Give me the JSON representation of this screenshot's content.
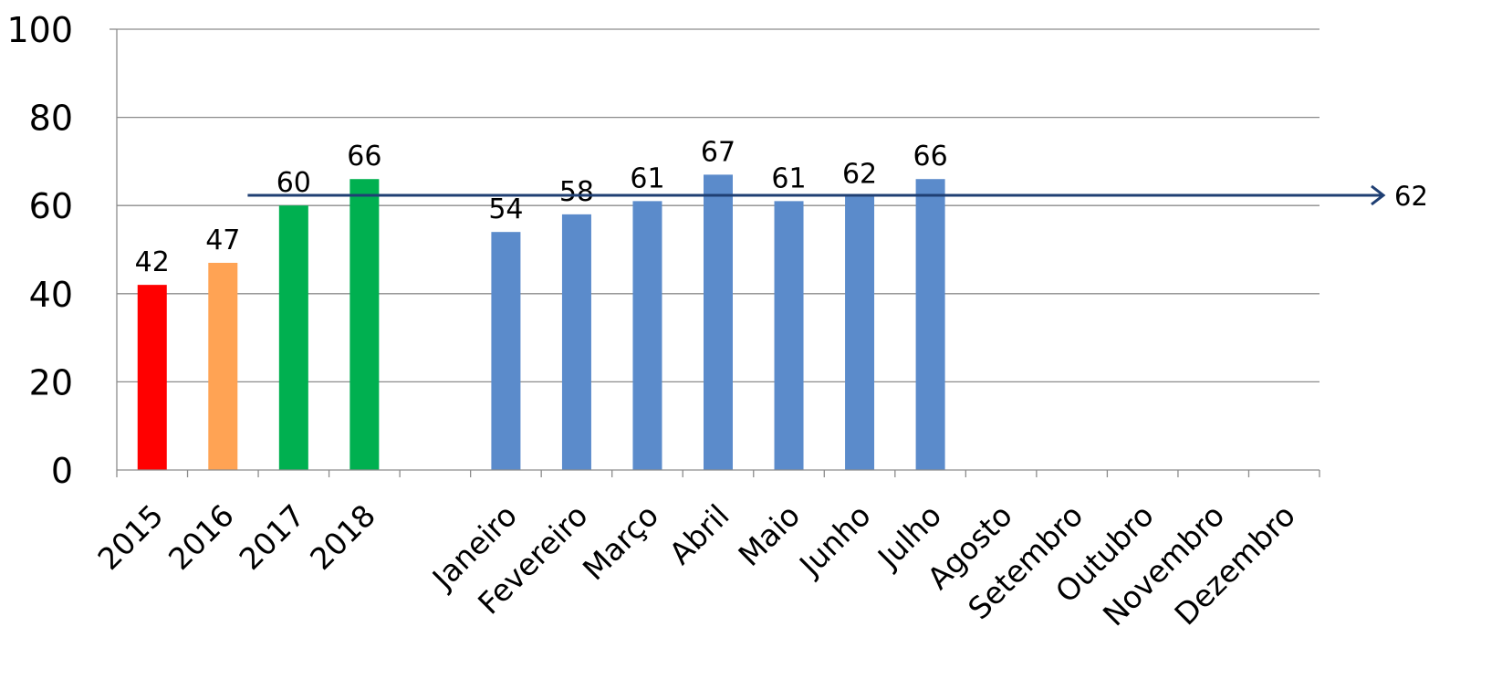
{
  "chart_data": {
    "type": "bar",
    "categories": [
      "2015",
      "2016",
      "2017",
      "2018",
      "",
      "Janeiro",
      "Fevereiro",
      "Março",
      "Abril",
      "Maio",
      "Junho",
      "Julho",
      "Agosto",
      "Setembro",
      "Outubro",
      "Novembro",
      "Dezembro"
    ],
    "values": [
      42,
      47,
      60,
      66,
      null,
      54,
      58,
      61,
      67,
      61,
      62,
      66,
      null,
      null,
      null,
      null,
      null
    ],
    "bar_colors": [
      "#ff0000",
      "#ffa354",
      "#00b050",
      "#00b050",
      null,
      "#5b8bcb",
      "#5b8bcb",
      "#5b8bcb",
      "#5b8bcb",
      "#5b8bcb",
      "#5b8bcb",
      "#5b8bcb",
      null,
      null,
      null,
      null,
      null
    ],
    "data_labels": [
      "42",
      "47",
      "60",
      "66",
      "",
      "54",
      "58",
      "61",
      "67",
      "61",
      "62",
      "66",
      "",
      "",
      "",
      "",
      ""
    ],
    "ylim": [
      0,
      100
    ],
    "yticks": [
      0,
      20,
      40,
      60,
      80,
      100
    ],
    "grid": true,
    "reference_line": {
      "value": 61.5,
      "label": "62",
      "color": "#1f3f73"
    }
  }
}
